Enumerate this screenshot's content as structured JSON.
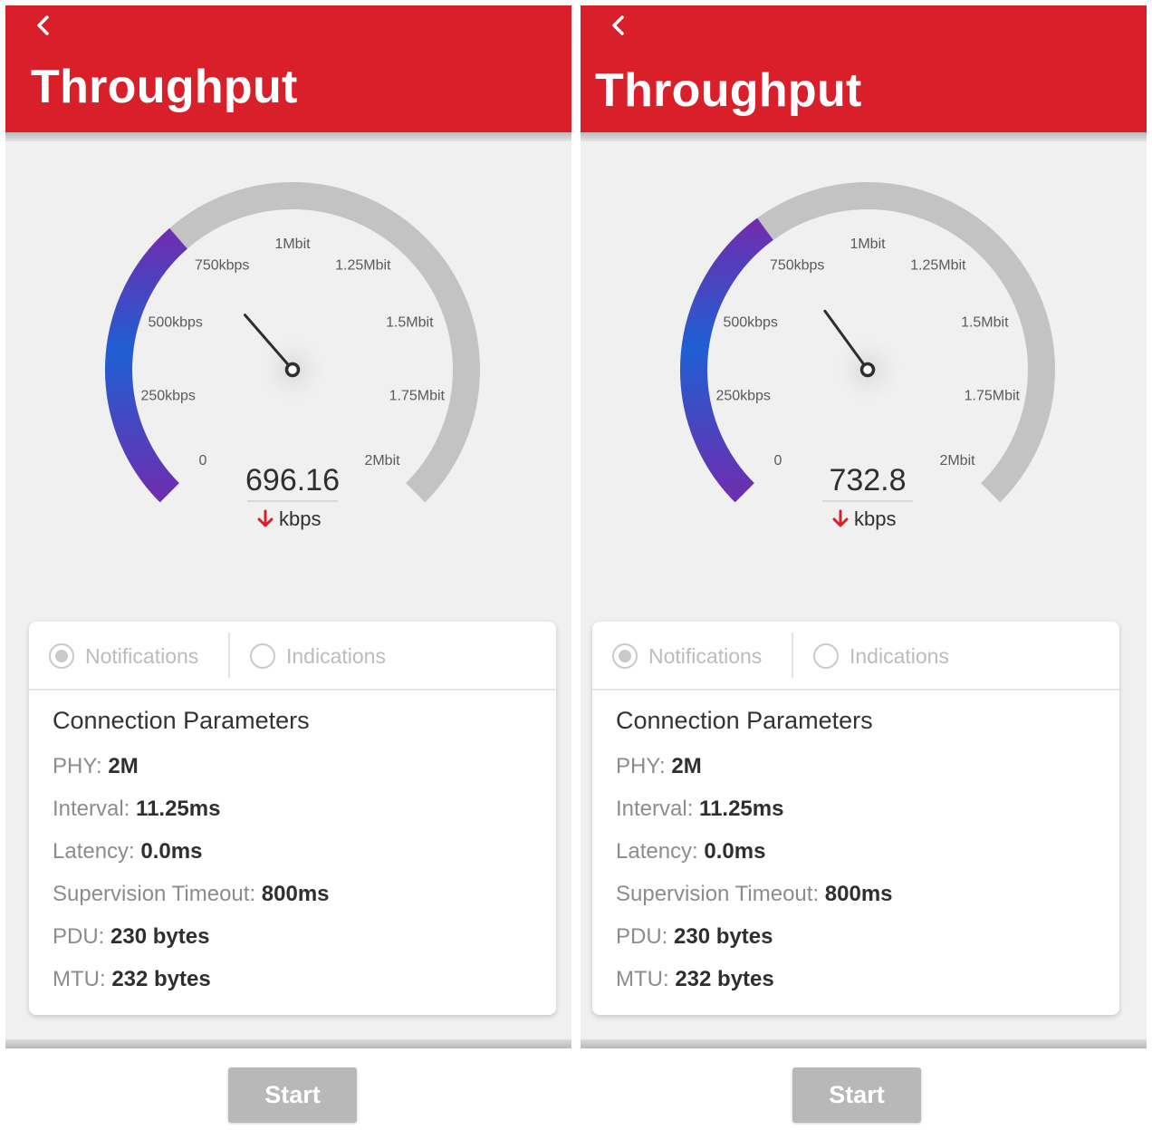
{
  "colors": {
    "header": "#d81f2a",
    "gauge_track": "#c3c3c3",
    "gauge_fill_start": "#6b2fb0",
    "gauge_fill_end": "#1f5fd3",
    "arrow": "#d81f2a"
  },
  "gauge_ticks": [
    "0",
    "250kbps",
    "500kbps",
    "750kbps",
    "1Mbit",
    "1.25Mbit",
    "1.5Mbit",
    "1.75Mbit",
    "2Mbit"
  ],
  "screens": [
    {
      "title": "Throughput",
      "back_icon": "chevron-left-icon",
      "gauge": {
        "value": 696.16,
        "value_text": "696.16",
        "unit": "kbps",
        "min": 0,
        "max": 2000,
        "direction_icon": "arrow-down-icon"
      },
      "modes": {
        "notifications_label": "Notifications",
        "indications_label": "Indications",
        "selected": "notifications"
      },
      "params": {
        "title": "Connection Parameters",
        "phy": {
          "label": "PHY: ",
          "value": "2M"
        },
        "interval": {
          "label": "Interval: ",
          "value": "11.25ms"
        },
        "latency": {
          "label": "Latency: ",
          "value": "0.0ms"
        },
        "supervision_timeout": {
          "label": "Supervision Timeout: ",
          "value": "800ms"
        },
        "pdu": {
          "label": "PDU: ",
          "value": "230 bytes"
        },
        "mtu": {
          "label": "MTU: ",
          "value": "232 bytes"
        }
      },
      "start_label": "Start"
    },
    {
      "title": "Throughput",
      "back_icon": "chevron-left-icon",
      "gauge": {
        "value": 732.8,
        "value_text": "732.8",
        "unit": "kbps",
        "min": 0,
        "max": 2000,
        "direction_icon": "arrow-down-icon"
      },
      "modes": {
        "notifications_label": "Notifications",
        "indications_label": "Indications",
        "selected": "notifications"
      },
      "params": {
        "title": "Connection Parameters",
        "phy": {
          "label": "PHY: ",
          "value": "2M"
        },
        "interval": {
          "label": "Interval: ",
          "value": "11.25ms"
        },
        "latency": {
          "label": "Latency: ",
          "value": "0.0ms"
        },
        "supervision_timeout": {
          "label": "Supervision Timeout: ",
          "value": "800ms"
        },
        "pdu": {
          "label": "PDU: ",
          "value": "230 bytes"
        },
        "mtu": {
          "label": "MTU: ",
          "value": "232 bytes"
        }
      },
      "start_label": "Start"
    }
  ]
}
